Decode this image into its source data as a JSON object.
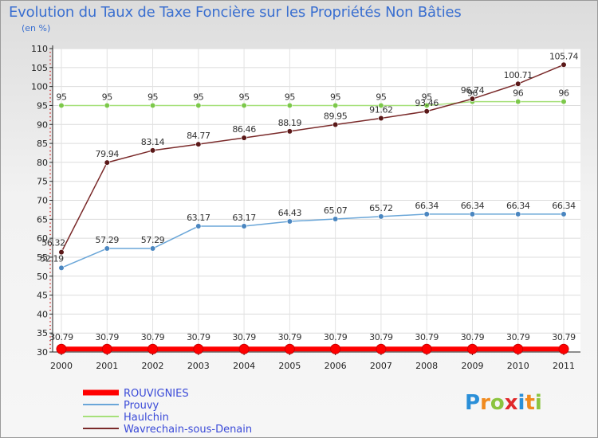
{
  "title": "Evolution du Taux de Taxe Foncière sur les Propriétés Non Bâties",
  "subtitle": "(en %)",
  "logo": {
    "letters": [
      "P",
      "r",
      "o",
      "x",
      "i",
      "t",
      "i"
    ],
    "colors": [
      "#2a8fd8",
      "#f08a1e",
      "#8bc43f",
      "#e0282a",
      "#2a8fd8",
      "#f08a1e",
      "#8bc43f"
    ]
  },
  "chart_data": {
    "type": "line",
    "categories": [
      "2000",
      "2001",
      "2002",
      "2003",
      "2004",
      "2005",
      "2006",
      "2007",
      "2008",
      "2009",
      "2010",
      "2011"
    ],
    "ylim": [
      30,
      110
    ],
    "yticks": [
      "30",
      "35",
      "40",
      "45",
      "50",
      "55",
      "60",
      "65",
      "70",
      "75",
      "80",
      "85",
      "90",
      "95",
      "100",
      "105",
      "110"
    ],
    "series": [
      {
        "name": "ROUVIGNIES",
        "color": "#ff0000",
        "marker": "#e00000",
        "thick": true,
        "values": [
          30.79,
          30.79,
          30.79,
          30.79,
          30.79,
          30.79,
          30.79,
          30.79,
          30.79,
          30.79,
          30.79,
          30.79
        ],
        "labels": [
          "30.79",
          "30.79",
          "30.79",
          "30.79",
          "30.79",
          "30.79",
          "30.79",
          "30.79",
          "30.79",
          "30.79",
          "30.79",
          "30.79"
        ]
      },
      {
        "name": "Prouvy",
        "color": "#6aa6d8",
        "marker": "#4a86c0",
        "values": [
          52.19,
          57.29,
          57.29,
          63.17,
          63.17,
          64.43,
          65.07,
          65.72,
          66.34,
          66.34,
          66.34,
          66.34
        ],
        "labels": [
          "52.19",
          "57.29",
          "57.29",
          "63.17",
          "63.17",
          "64.43",
          "65.07",
          "65.72",
          "66.34",
          "66.34",
          "66.34",
          "66.34"
        ]
      },
      {
        "name": "Haulchin",
        "color": "#a6e07a",
        "marker": "#7cc84a",
        "values": [
          95,
          95,
          95,
          95,
          95,
          95,
          95,
          95,
          95,
          96,
          96,
          96
        ],
        "labels": [
          "95",
          "95",
          "95",
          "95",
          "95",
          "95",
          "95",
          "95",
          "95",
          "96",
          "96",
          "96"
        ]
      },
      {
        "name": "Wavrechain-sous-Denain",
        "color": "#7a2a2a",
        "marker": "#5a1818",
        "values": [
          56.32,
          79.94,
          83.14,
          84.77,
          86.46,
          88.19,
          89.95,
          91.62,
          93.46,
          96.74,
          100.71,
          105.74
        ],
        "labels": [
          "56.32",
          "79.94",
          "83.14",
          "84.77",
          "86.46",
          "88.19",
          "89.95",
          "91.62",
          "93.46",
          "96.74",
          "100.71",
          "105.74"
        ]
      }
    ]
  }
}
